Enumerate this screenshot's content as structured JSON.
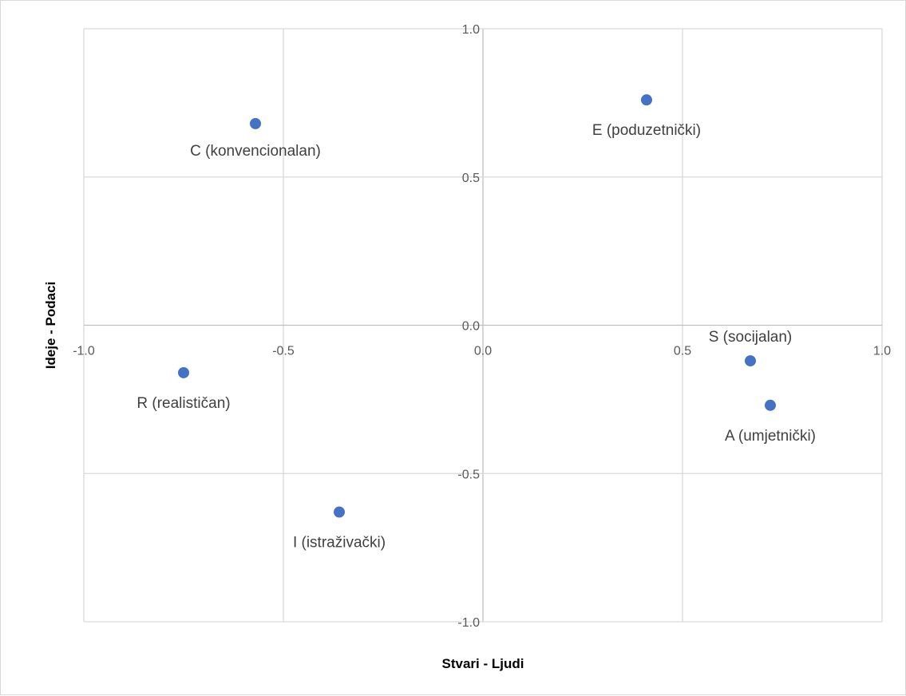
{
  "chart_data": {
    "type": "scatter",
    "title": "",
    "xlabel": "Stvari - Ljudi",
    "ylabel": "Ideje - Podaci",
    "xlim": [
      -1.0,
      1.0
    ],
    "ylim": [
      -1.0,
      1.0
    ],
    "x_ticks": [
      -1.0,
      -0.5,
      0.0,
      0.5,
      1.0
    ],
    "y_ticks": [
      -1.0,
      -0.5,
      0.0,
      0.5,
      1.0
    ],
    "x_tick_labels": [
      "-1.0",
      "-0.5",
      "0.0",
      "0.5",
      "1.0"
    ],
    "y_tick_labels": [
      "-1.0",
      "-0.5",
      "0.0",
      "0.5",
      "1.0"
    ],
    "grid": true,
    "legend": "none",
    "marker_color": "#4472C4",
    "points": [
      {
        "label": "R (realističan)",
        "x": -0.75,
        "y": -0.16
      },
      {
        "label": "I (istraživački)",
        "x": -0.36,
        "y": -0.63
      },
      {
        "label": "A (umjetnički)",
        "x": 0.72,
        "y": -0.27
      },
      {
        "label": "S (socijalan)",
        "x": 0.67,
        "y": -0.12
      },
      {
        "label": "E (poduzetnički)",
        "x": 0.41,
        "y": 0.76
      },
      {
        "label": "C (konvencionalan)",
        "x": -0.57,
        "y": 0.68
      }
    ]
  }
}
